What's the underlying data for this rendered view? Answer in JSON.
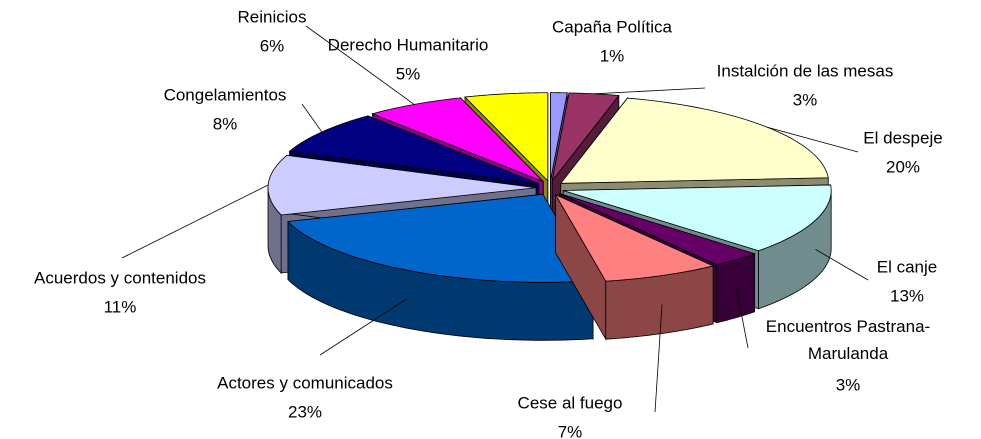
{
  "chart_data": {
    "type": "pie",
    "categories": [
      "Capaña Política",
      "Instalción de las mesas",
      "El despeje",
      "El canje",
      "Encuentros Pastrana-Marulanda",
      "Cese al fuego",
      "Actores y comunicados",
      "Acuerdos y contenidos",
      "Congelamientos",
      "Reinicios",
      "Derecho Humanitario"
    ],
    "values": [
      1,
      3,
      20,
      13,
      3,
      7,
      23,
      11,
      8,
      6,
      5
    ],
    "value_labels": [
      "1%",
      "3%",
      "20%",
      "13%",
      "3%",
      "7%",
      "23%",
      "11%",
      "8%",
      "6%",
      "5%"
    ],
    "colors": [
      "#9999ff",
      "#993366",
      "#ffffcc",
      "#ccffff",
      "#660066",
      "#ff8080",
      "#0066cc",
      "#ccccff",
      "#000080",
      "#ff00ff",
      "#ffff00"
    ]
  }
}
